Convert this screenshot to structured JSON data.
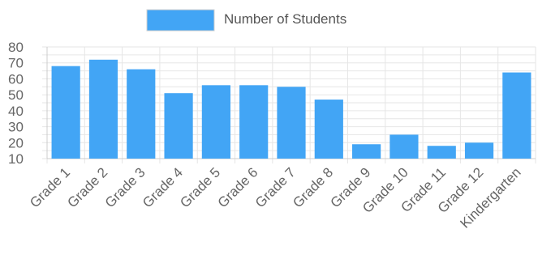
{
  "chart_data": {
    "type": "bar",
    "categories": [
      "Grade 1",
      "Grade 2",
      "Grade 3",
      "Grade 4",
      "Grade 5",
      "Grade 6",
      "Grade 7",
      "Grade 8",
      "Grade 9",
      "Grade 10",
      "Grade 11",
      "Grade 12",
      "Kindergarten"
    ],
    "series": [
      {
        "name": "Number of Students",
        "values": [
          68,
          72,
          66,
          51,
          56,
          56,
          55,
          47,
          19,
          25,
          18,
          20,
          64
        ],
        "color": "#42a5f5"
      }
    ],
    "y_ticks": [
      80,
      70,
      60,
      50,
      40,
      30,
      20,
      10
    ],
    "ylim": [
      10,
      80
    ],
    "grid": true,
    "legend_position": "top"
  }
}
